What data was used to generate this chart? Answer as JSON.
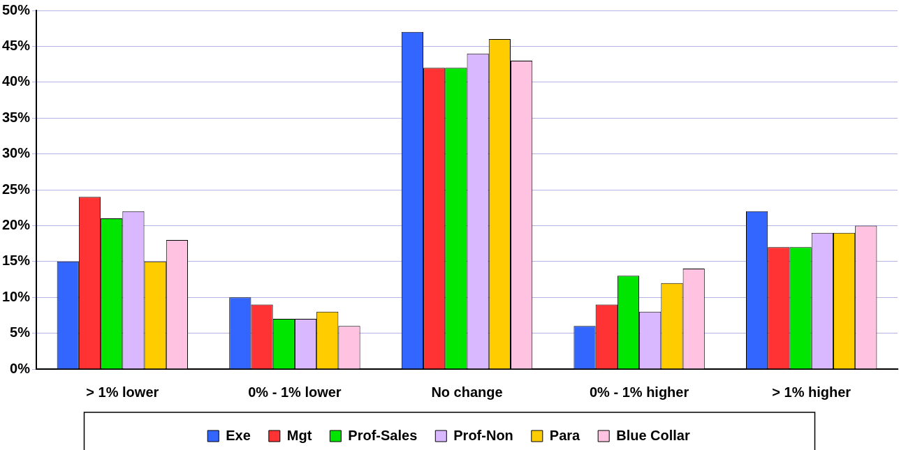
{
  "chart_data": {
    "type": "bar",
    "categories": [
      "> 1% lower",
      "0% - 1% lower",
      "No change",
      "0% - 1% higher",
      "> 1% higher"
    ],
    "series": [
      {
        "name": "Exe",
        "color": "#3366ff",
        "values": [
          15,
          10,
          47,
          6,
          22
        ]
      },
      {
        "name": "Mgt",
        "color": "#ff3333",
        "values": [
          24,
          9,
          42,
          9,
          17
        ]
      },
      {
        "name": "Prof-Sales",
        "color": "#00e600",
        "values": [
          21,
          7,
          42,
          13,
          17
        ]
      },
      {
        "name": "Prof-Non",
        "color": "#d9b8ff",
        "values": [
          22,
          7,
          44,
          8,
          19
        ]
      },
      {
        "name": "Para",
        "color": "#ffcc00",
        "values": [
          15,
          8,
          46,
          12,
          19
        ]
      },
      {
        "name": "Blue Collar",
        "color": "#ffc2e0",
        "values": [
          18,
          6,
          43,
          14,
          20
        ]
      }
    ],
    "ylim": [
      0,
      50
    ],
    "yticks": [
      {
        "value": 0,
        "label": "0%"
      },
      {
        "value": 5,
        "label": "5%"
      },
      {
        "value": 10,
        "label": "10%"
      },
      {
        "value": 15,
        "label": "15%"
      },
      {
        "value": 20,
        "label": "20%"
      },
      {
        "value": 25,
        "label": "25%"
      },
      {
        "value": 30,
        "label": "30%"
      },
      {
        "value": 35,
        "label": "35%"
      },
      {
        "value": 40,
        "label": "40%"
      },
      {
        "value": 45,
        "label": "45%"
      },
      {
        "value": 50,
        "label": "50%"
      }
    ],
    "grid": "y",
    "legend": "bottom"
  }
}
